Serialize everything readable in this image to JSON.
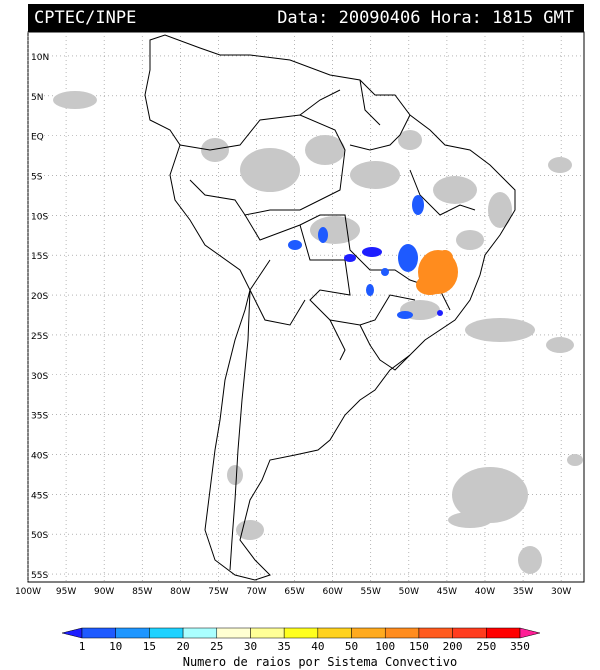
{
  "header": {
    "source": "CPTEC/INPE",
    "datetime": "Data: 20090406 Hora: 1815 GMT"
  },
  "axes": {
    "lat_labels": [
      "10N",
      "5N",
      "EQ",
      "5S",
      "10S",
      "15S",
      "20S",
      "25S",
      "30S",
      "35S",
      "40S",
      "45S",
      "50S",
      "55S"
    ],
    "lat_values": [
      10,
      5,
      0,
      -5,
      -10,
      -15,
      -20,
      -25,
      -30,
      -35,
      -40,
      -45,
      -50,
      -55
    ],
    "lon_labels": [
      "100W",
      "95W",
      "90W",
      "85W",
      "80W",
      "75W",
      "70W",
      "65W",
      "60W",
      "55W",
      "50W",
      "45W",
      "40W",
      "35W",
      "30W"
    ],
    "lon_values": [
      -100,
      -95,
      -90,
      -85,
      -80,
      -75,
      -70,
      -65,
      -60,
      -55,
      -50,
      -45,
      -40,
      -35,
      -30
    ],
    "lon_range": [
      -100,
      -27
    ],
    "lat_range": [
      -56,
      13
    ]
  },
  "legend": {
    "title": "Numero de raios por Sistema Convectivo",
    "values": [
      "1",
      "10",
      "15",
      "20",
      "25",
      "30",
      "35",
      "40",
      "50",
      "100",
      "150",
      "200",
      "250",
      "350"
    ],
    "colors": [
      "#1e1eff",
      "#1e5aff",
      "#1e96ff",
      "#1ed2ff",
      "#aaffff",
      "#ffffd2",
      "#ffff96",
      "#ffff1e",
      "#ffd21e",
      "#ffaa1e",
      "#ff8c1e",
      "#ff5a1e",
      "#ff3c1e",
      "#ff0000",
      "#ff1e96"
    ]
  }
}
